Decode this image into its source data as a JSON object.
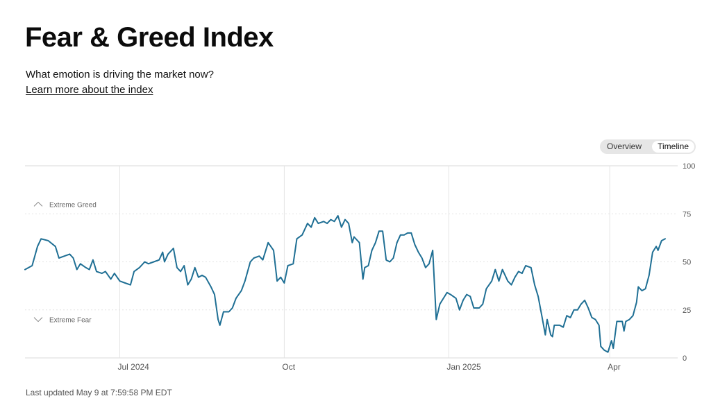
{
  "header": {
    "title": "Fear & Greed Index",
    "subtitle": "What emotion is driving the market now?",
    "learn_more": "Learn more about the index"
  },
  "toggle": {
    "overview_label": "Overview",
    "timeline_label": "Timeline",
    "selected": "Timeline"
  },
  "footer": {
    "last_updated": "Last updated May 9 at 7:59:58 PM EDT"
  },
  "colors": {
    "line": "#1f6f94",
    "grid": "#e4e4e4",
    "axis_text": "#555555",
    "zone_text": "#666666"
  },
  "chart_data": {
    "type": "line",
    "title": "",
    "xlabel": "",
    "ylabel": "",
    "ylim": [
      0,
      100
    ],
    "y_ticks": [
      0,
      25,
      50,
      75,
      100
    ],
    "x_range": [
      "2024-05-09",
      "2025-05-09"
    ],
    "x_ticks": [
      {
        "date": "2024-07-01",
        "label": "Jul 2024"
      },
      {
        "date": "2024-10-01",
        "label": "Oct"
      },
      {
        "date": "2025-01-01",
        "label": "Jan 2025"
      },
      {
        "date": "2025-04-01",
        "label": "Apr"
      }
    ],
    "zones": [
      {
        "label": "Extreme Greed",
        "direction": "up",
        "value": 80
      },
      {
        "label": "Extreme Fear",
        "direction": "down",
        "value": 20
      }
    ],
    "grid": true,
    "series": [
      {
        "values": [
          [
            "2024-05-09",
            46
          ],
          [
            "2024-05-13",
            48
          ],
          [
            "2024-05-16",
            58
          ],
          [
            "2024-05-18",
            62
          ],
          [
            "2024-05-22",
            61
          ],
          [
            "2024-05-26",
            58
          ],
          [
            "2024-05-28",
            52
          ],
          [
            "2024-05-31",
            53
          ],
          [
            "2024-06-03",
            54
          ],
          [
            "2024-06-05",
            52
          ],
          [
            "2024-06-07",
            46
          ],
          [
            "2024-06-09",
            49
          ],
          [
            "2024-06-12",
            47
          ],
          [
            "2024-06-14",
            46
          ],
          [
            "2024-06-16",
            51
          ],
          [
            "2024-06-18",
            45
          ],
          [
            "2024-06-21",
            44
          ],
          [
            "2024-06-23",
            45
          ],
          [
            "2024-06-26",
            41
          ],
          [
            "2024-06-28",
            44
          ],
          [
            "2024-07-01",
            40
          ],
          [
            "2024-07-04",
            39
          ],
          [
            "2024-07-07",
            38
          ],
          [
            "2024-07-09",
            45
          ],
          [
            "2024-07-12",
            47
          ],
          [
            "2024-07-15",
            50
          ],
          [
            "2024-07-17",
            49
          ],
          [
            "2024-07-20",
            50
          ],
          [
            "2024-07-23",
            51
          ],
          [
            "2024-07-25",
            55
          ],
          [
            "2024-07-26",
            50
          ],
          [
            "2024-07-28",
            54
          ],
          [
            "2024-07-31",
            57
          ],
          [
            "2024-08-02",
            47
          ],
          [
            "2024-08-04",
            45
          ],
          [
            "2024-08-06",
            48
          ],
          [
            "2024-08-08",
            38
          ],
          [
            "2024-08-10",
            41
          ],
          [
            "2024-08-12",
            47
          ],
          [
            "2024-08-14",
            42
          ],
          [
            "2024-08-16",
            43
          ],
          [
            "2024-08-18",
            42
          ],
          [
            "2024-08-21",
            37
          ],
          [
            "2024-08-23",
            33
          ],
          [
            "2024-08-25",
            20
          ],
          [
            "2024-08-26",
            17
          ],
          [
            "2024-08-28",
            24
          ],
          [
            "2024-08-31",
            24
          ],
          [
            "2024-09-02",
            26
          ],
          [
            "2024-09-04",
            31
          ],
          [
            "2024-09-07",
            35
          ],
          [
            "2024-09-09",
            40
          ],
          [
            "2024-09-12",
            50
          ],
          [
            "2024-09-14",
            52
          ],
          [
            "2024-09-17",
            53
          ],
          [
            "2024-09-19",
            51
          ],
          [
            "2024-09-22",
            60
          ],
          [
            "2024-09-25",
            56
          ],
          [
            "2024-09-27",
            40
          ],
          [
            "2024-09-29",
            42
          ],
          [
            "2024-10-01",
            39
          ],
          [
            "2024-10-03",
            48
          ],
          [
            "2024-10-06",
            49
          ],
          [
            "2024-10-08",
            62
          ],
          [
            "2024-10-11",
            64
          ],
          [
            "2024-10-14",
            70
          ],
          [
            "2024-10-16",
            68
          ],
          [
            "2024-10-18",
            73
          ],
          [
            "2024-10-20",
            70
          ],
          [
            "2024-10-23",
            71
          ],
          [
            "2024-10-25",
            70
          ],
          [
            "2024-10-27",
            72
          ],
          [
            "2024-10-29",
            71
          ],
          [
            "2024-10-31",
            74
          ],
          [
            "2024-11-02",
            68
          ],
          [
            "2024-11-04",
            72
          ],
          [
            "2024-11-06",
            70
          ],
          [
            "2024-11-08",
            60
          ],
          [
            "2024-11-09",
            63
          ],
          [
            "2024-11-12",
            60
          ],
          [
            "2024-11-14",
            41
          ],
          [
            "2024-11-15",
            47
          ],
          [
            "2024-11-17",
            48
          ],
          [
            "2024-11-19",
            56
          ],
          [
            "2024-11-21",
            60
          ],
          [
            "2024-11-23",
            66
          ],
          [
            "2024-11-25",
            66
          ],
          [
            "2024-11-27",
            51
          ],
          [
            "2024-11-29",
            50
          ],
          [
            "2024-12-01",
            52
          ],
          [
            "2024-12-03",
            60
          ],
          [
            "2024-12-05",
            64
          ],
          [
            "2024-12-07",
            64
          ],
          [
            "2024-12-09",
            65
          ],
          [
            "2024-12-11",
            65
          ],
          [
            "2024-12-13",
            59
          ],
          [
            "2024-12-15",
            55
          ],
          [
            "2024-12-17",
            52
          ],
          [
            "2024-12-19",
            47
          ],
          [
            "2024-12-21",
            49
          ],
          [
            "2024-12-23",
            56
          ],
          [
            "2024-12-25",
            20
          ],
          [
            "2024-12-27",
            28
          ],
          [
            "2024-12-29",
            31
          ],
          [
            "2024-12-31",
            34
          ],
          [
            "2025-01-02",
            33
          ],
          [
            "2025-01-05",
            31
          ],
          [
            "2025-01-07",
            25
          ],
          [
            "2025-01-09",
            30
          ],
          [
            "2025-01-11",
            33
          ],
          [
            "2025-01-13",
            32
          ],
          [
            "2025-01-15",
            26
          ],
          [
            "2025-01-18",
            26
          ],
          [
            "2025-01-20",
            28
          ],
          [
            "2025-01-22",
            36
          ],
          [
            "2025-01-25",
            40
          ],
          [
            "2025-01-27",
            46
          ],
          [
            "2025-01-29",
            40
          ],
          [
            "2025-01-31",
            46
          ],
          [
            "2025-02-03",
            40
          ],
          [
            "2025-02-05",
            38
          ],
          [
            "2025-02-07",
            42
          ],
          [
            "2025-02-09",
            45
          ],
          [
            "2025-02-11",
            44
          ],
          [
            "2025-02-13",
            48
          ],
          [
            "2025-02-16",
            47
          ],
          [
            "2025-02-18",
            38
          ],
          [
            "2025-02-20",
            32
          ],
          [
            "2025-02-22",
            22
          ],
          [
            "2025-02-24",
            12
          ],
          [
            "2025-02-25",
            20
          ],
          [
            "2025-02-27",
            12
          ],
          [
            "2025-02-28",
            11
          ],
          [
            "2025-03-01",
            17
          ],
          [
            "2025-03-04",
            17
          ],
          [
            "2025-03-06",
            16
          ],
          [
            "2025-03-08",
            22
          ],
          [
            "2025-03-10",
            21
          ],
          [
            "2025-03-12",
            25
          ],
          [
            "2025-03-14",
            25
          ],
          [
            "2025-03-16",
            28
          ],
          [
            "2025-03-18",
            30
          ],
          [
            "2025-03-20",
            26
          ],
          [
            "2025-03-22",
            21
          ],
          [
            "2025-03-24",
            20
          ],
          [
            "2025-03-26",
            17
          ],
          [
            "2025-03-27",
            6
          ],
          [
            "2025-03-29",
            4
          ],
          [
            "2025-03-31",
            3
          ],
          [
            "2025-04-02",
            9
          ],
          [
            "2025-04-03",
            5
          ],
          [
            "2025-04-05",
            19
          ],
          [
            "2025-04-08",
            19
          ],
          [
            "2025-04-09",
            14
          ],
          [
            "2025-04-10",
            19
          ],
          [
            "2025-04-12",
            20
          ],
          [
            "2025-04-14",
            22
          ],
          [
            "2025-04-16",
            29
          ],
          [
            "2025-04-17",
            37
          ],
          [
            "2025-04-19",
            35
          ],
          [
            "2025-04-21",
            36
          ],
          [
            "2025-04-23",
            43
          ],
          [
            "2025-04-25",
            55
          ],
          [
            "2025-04-27",
            58
          ],
          [
            "2025-04-28",
            56
          ],
          [
            "2025-04-30",
            61
          ],
          [
            "2025-05-02",
            62
          ]
        ]
      }
    ]
  }
}
